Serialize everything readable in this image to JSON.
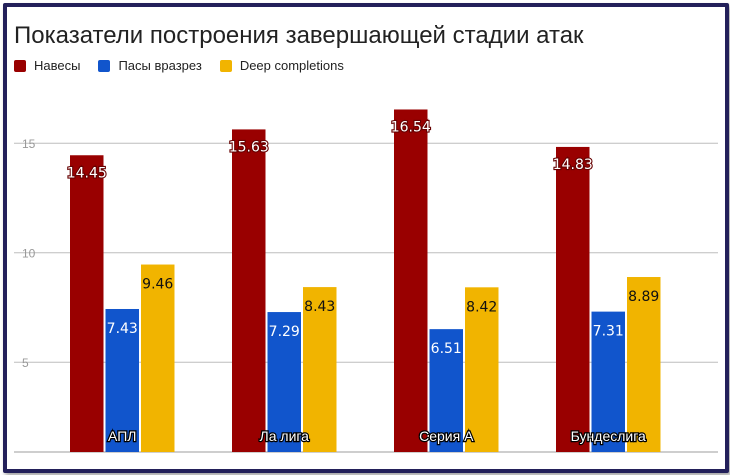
{
  "chart_data": {
    "type": "bar",
    "title": "Показатели построения завершающей стадии атак",
    "categories": [
      "АПЛ",
      "Ла лига",
      "Серия А",
      "Бундеслига"
    ],
    "series": [
      {
        "name": "Навесы",
        "color": "#990000",
        "values": [
          14.45,
          15.63,
          16.54,
          14.83
        ],
        "labels": [
          "14.45",
          "15.63",
          "16.54",
          "14.83"
        ]
      },
      {
        "name": "Пасы вразрез",
        "color": "#1155cc",
        "values": [
          7.43,
          7.29,
          6.51,
          7.31
        ],
        "labels": [
          "7.43",
          "7.29",
          "6.51",
          "7.31"
        ]
      },
      {
        "name": "Deep completions",
        "color": "#f1b400",
        "values": [
          9.46,
          8.43,
          8.42,
          8.89
        ],
        "labels": [
          "9.46",
          "8.43",
          "8.42",
          "8.89"
        ]
      }
    ],
    "yticks": [
      5,
      10,
      15
    ],
    "ytick_labels": [
      "5",
      "10",
      "15"
    ],
    "ylim": [
      0.9,
      17.2
    ],
    "grid": true,
    "legend": "top-left"
  }
}
